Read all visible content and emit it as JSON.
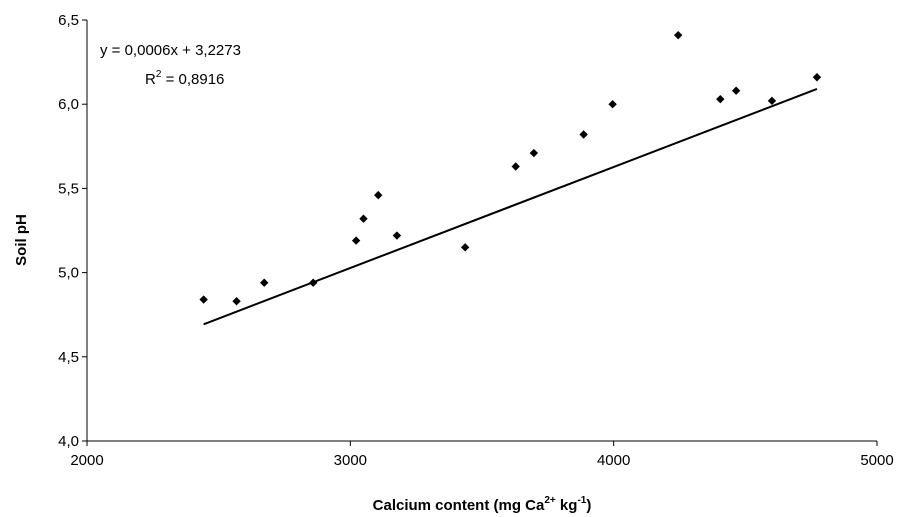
{
  "chart_data": {
    "type": "scatter",
    "xlabel": {
      "main": "Calcium content (mg Ca",
      "sup1": "2+",
      "mid": " kg",
      "sup2": "-1",
      "end": ")"
    },
    "ylabel": "Soil pH",
    "xlim": [
      2000,
      5000
    ],
    "ylim": [
      4.0,
      6.5
    ],
    "x_ticks": [
      2000,
      3000,
      4000,
      5000
    ],
    "x_tick_labels": [
      "2000",
      "3000",
      "4000",
      "5000"
    ],
    "y_ticks": [
      4.0,
      4.5,
      5.0,
      5.5,
      6.0,
      6.5
    ],
    "y_tick_labels": [
      "4,0",
      "4,5",
      "5,0",
      "5,5",
      "6,0",
      "6,5"
    ],
    "grid": false,
    "points": [
      {
        "x": 2443,
        "y": 4.84
      },
      {
        "x": 2568,
        "y": 4.83
      },
      {
        "x": 2673,
        "y": 4.94
      },
      {
        "x": 2859,
        "y": 4.94
      },
      {
        "x": 3022,
        "y": 5.19
      },
      {
        "x": 3050,
        "y": 5.32
      },
      {
        "x": 3106,
        "y": 5.46
      },
      {
        "x": 3177,
        "y": 5.22
      },
      {
        "x": 3436,
        "y": 5.15
      },
      {
        "x": 3628,
        "y": 5.63
      },
      {
        "x": 3697,
        "y": 5.71
      },
      {
        "x": 3886,
        "y": 5.82
      },
      {
        "x": 3996,
        "y": 6.0
      },
      {
        "x": 4245,
        "y": 6.41
      },
      {
        "x": 4405,
        "y": 6.03
      },
      {
        "x": 4465,
        "y": 6.08
      },
      {
        "x": 4601,
        "y": 6.02
      },
      {
        "x": 4772,
        "y": 6.16
      }
    ],
    "trendline": {
      "type": "linear",
      "x_start": 2443,
      "x_end": 4772,
      "slope": 0.0006,
      "intercept": 3.2273,
      "equation_text": "y = 0,0006x + 3,2273",
      "r2_prefix": "R",
      "r2_sup": "2",
      "r2_suffix": " = 0,8916"
    },
    "marker_color": "#000000",
    "line_color": "#000000"
  }
}
